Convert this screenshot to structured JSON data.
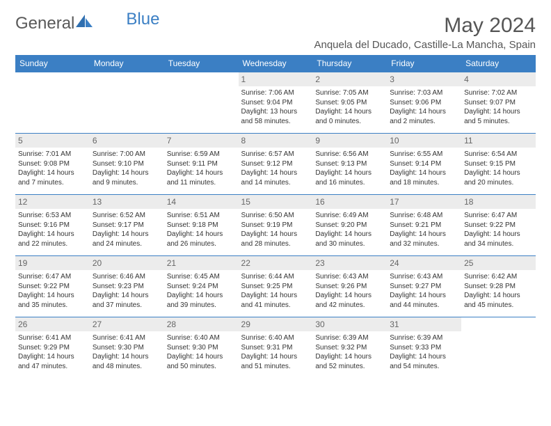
{
  "logo": {
    "text1": "General",
    "text2": "Blue"
  },
  "title": "May 2024",
  "location": "Anquela del Ducado, Castille-La Mancha, Spain",
  "weekdays": [
    "Sunday",
    "Monday",
    "Tuesday",
    "Wednesday",
    "Thursday",
    "Friday",
    "Saturday"
  ],
  "colors": {
    "header_bg": "#3b7fc4",
    "header_fg": "#ffffff",
    "border": "#3b7fc4",
    "daynum_bg": "#ececec",
    "text": "#333333"
  },
  "weeks": [
    [
      null,
      null,
      null,
      {
        "n": "1",
        "sr": "Sunrise: 7:06 AM",
        "ss": "Sunset: 9:04 PM",
        "dl": "Daylight: 13 hours and 58 minutes."
      },
      {
        "n": "2",
        "sr": "Sunrise: 7:05 AM",
        "ss": "Sunset: 9:05 PM",
        "dl": "Daylight: 14 hours and 0 minutes."
      },
      {
        "n": "3",
        "sr": "Sunrise: 7:03 AM",
        "ss": "Sunset: 9:06 PM",
        "dl": "Daylight: 14 hours and 2 minutes."
      },
      {
        "n": "4",
        "sr": "Sunrise: 7:02 AM",
        "ss": "Sunset: 9:07 PM",
        "dl": "Daylight: 14 hours and 5 minutes."
      }
    ],
    [
      {
        "n": "5",
        "sr": "Sunrise: 7:01 AM",
        "ss": "Sunset: 9:08 PM",
        "dl": "Daylight: 14 hours and 7 minutes."
      },
      {
        "n": "6",
        "sr": "Sunrise: 7:00 AM",
        "ss": "Sunset: 9:10 PM",
        "dl": "Daylight: 14 hours and 9 minutes."
      },
      {
        "n": "7",
        "sr": "Sunrise: 6:59 AM",
        "ss": "Sunset: 9:11 PM",
        "dl": "Daylight: 14 hours and 11 minutes."
      },
      {
        "n": "8",
        "sr": "Sunrise: 6:57 AM",
        "ss": "Sunset: 9:12 PM",
        "dl": "Daylight: 14 hours and 14 minutes."
      },
      {
        "n": "9",
        "sr": "Sunrise: 6:56 AM",
        "ss": "Sunset: 9:13 PM",
        "dl": "Daylight: 14 hours and 16 minutes."
      },
      {
        "n": "10",
        "sr": "Sunrise: 6:55 AM",
        "ss": "Sunset: 9:14 PM",
        "dl": "Daylight: 14 hours and 18 minutes."
      },
      {
        "n": "11",
        "sr": "Sunrise: 6:54 AM",
        "ss": "Sunset: 9:15 PM",
        "dl": "Daylight: 14 hours and 20 minutes."
      }
    ],
    [
      {
        "n": "12",
        "sr": "Sunrise: 6:53 AM",
        "ss": "Sunset: 9:16 PM",
        "dl": "Daylight: 14 hours and 22 minutes."
      },
      {
        "n": "13",
        "sr": "Sunrise: 6:52 AM",
        "ss": "Sunset: 9:17 PM",
        "dl": "Daylight: 14 hours and 24 minutes."
      },
      {
        "n": "14",
        "sr": "Sunrise: 6:51 AM",
        "ss": "Sunset: 9:18 PM",
        "dl": "Daylight: 14 hours and 26 minutes."
      },
      {
        "n": "15",
        "sr": "Sunrise: 6:50 AM",
        "ss": "Sunset: 9:19 PM",
        "dl": "Daylight: 14 hours and 28 minutes."
      },
      {
        "n": "16",
        "sr": "Sunrise: 6:49 AM",
        "ss": "Sunset: 9:20 PM",
        "dl": "Daylight: 14 hours and 30 minutes."
      },
      {
        "n": "17",
        "sr": "Sunrise: 6:48 AM",
        "ss": "Sunset: 9:21 PM",
        "dl": "Daylight: 14 hours and 32 minutes."
      },
      {
        "n": "18",
        "sr": "Sunrise: 6:47 AM",
        "ss": "Sunset: 9:22 PM",
        "dl": "Daylight: 14 hours and 34 minutes."
      }
    ],
    [
      {
        "n": "19",
        "sr": "Sunrise: 6:47 AM",
        "ss": "Sunset: 9:22 PM",
        "dl": "Daylight: 14 hours and 35 minutes."
      },
      {
        "n": "20",
        "sr": "Sunrise: 6:46 AM",
        "ss": "Sunset: 9:23 PM",
        "dl": "Daylight: 14 hours and 37 minutes."
      },
      {
        "n": "21",
        "sr": "Sunrise: 6:45 AM",
        "ss": "Sunset: 9:24 PM",
        "dl": "Daylight: 14 hours and 39 minutes."
      },
      {
        "n": "22",
        "sr": "Sunrise: 6:44 AM",
        "ss": "Sunset: 9:25 PM",
        "dl": "Daylight: 14 hours and 41 minutes."
      },
      {
        "n": "23",
        "sr": "Sunrise: 6:43 AM",
        "ss": "Sunset: 9:26 PM",
        "dl": "Daylight: 14 hours and 42 minutes."
      },
      {
        "n": "24",
        "sr": "Sunrise: 6:43 AM",
        "ss": "Sunset: 9:27 PM",
        "dl": "Daylight: 14 hours and 44 minutes."
      },
      {
        "n": "25",
        "sr": "Sunrise: 6:42 AM",
        "ss": "Sunset: 9:28 PM",
        "dl": "Daylight: 14 hours and 45 minutes."
      }
    ],
    [
      {
        "n": "26",
        "sr": "Sunrise: 6:41 AM",
        "ss": "Sunset: 9:29 PM",
        "dl": "Daylight: 14 hours and 47 minutes."
      },
      {
        "n": "27",
        "sr": "Sunrise: 6:41 AM",
        "ss": "Sunset: 9:30 PM",
        "dl": "Daylight: 14 hours and 48 minutes."
      },
      {
        "n": "28",
        "sr": "Sunrise: 6:40 AM",
        "ss": "Sunset: 9:30 PM",
        "dl": "Daylight: 14 hours and 50 minutes."
      },
      {
        "n": "29",
        "sr": "Sunrise: 6:40 AM",
        "ss": "Sunset: 9:31 PM",
        "dl": "Daylight: 14 hours and 51 minutes."
      },
      {
        "n": "30",
        "sr": "Sunrise: 6:39 AM",
        "ss": "Sunset: 9:32 PM",
        "dl": "Daylight: 14 hours and 52 minutes."
      },
      {
        "n": "31",
        "sr": "Sunrise: 6:39 AM",
        "ss": "Sunset: 9:33 PM",
        "dl": "Daylight: 14 hours and 54 minutes."
      },
      null
    ]
  ]
}
